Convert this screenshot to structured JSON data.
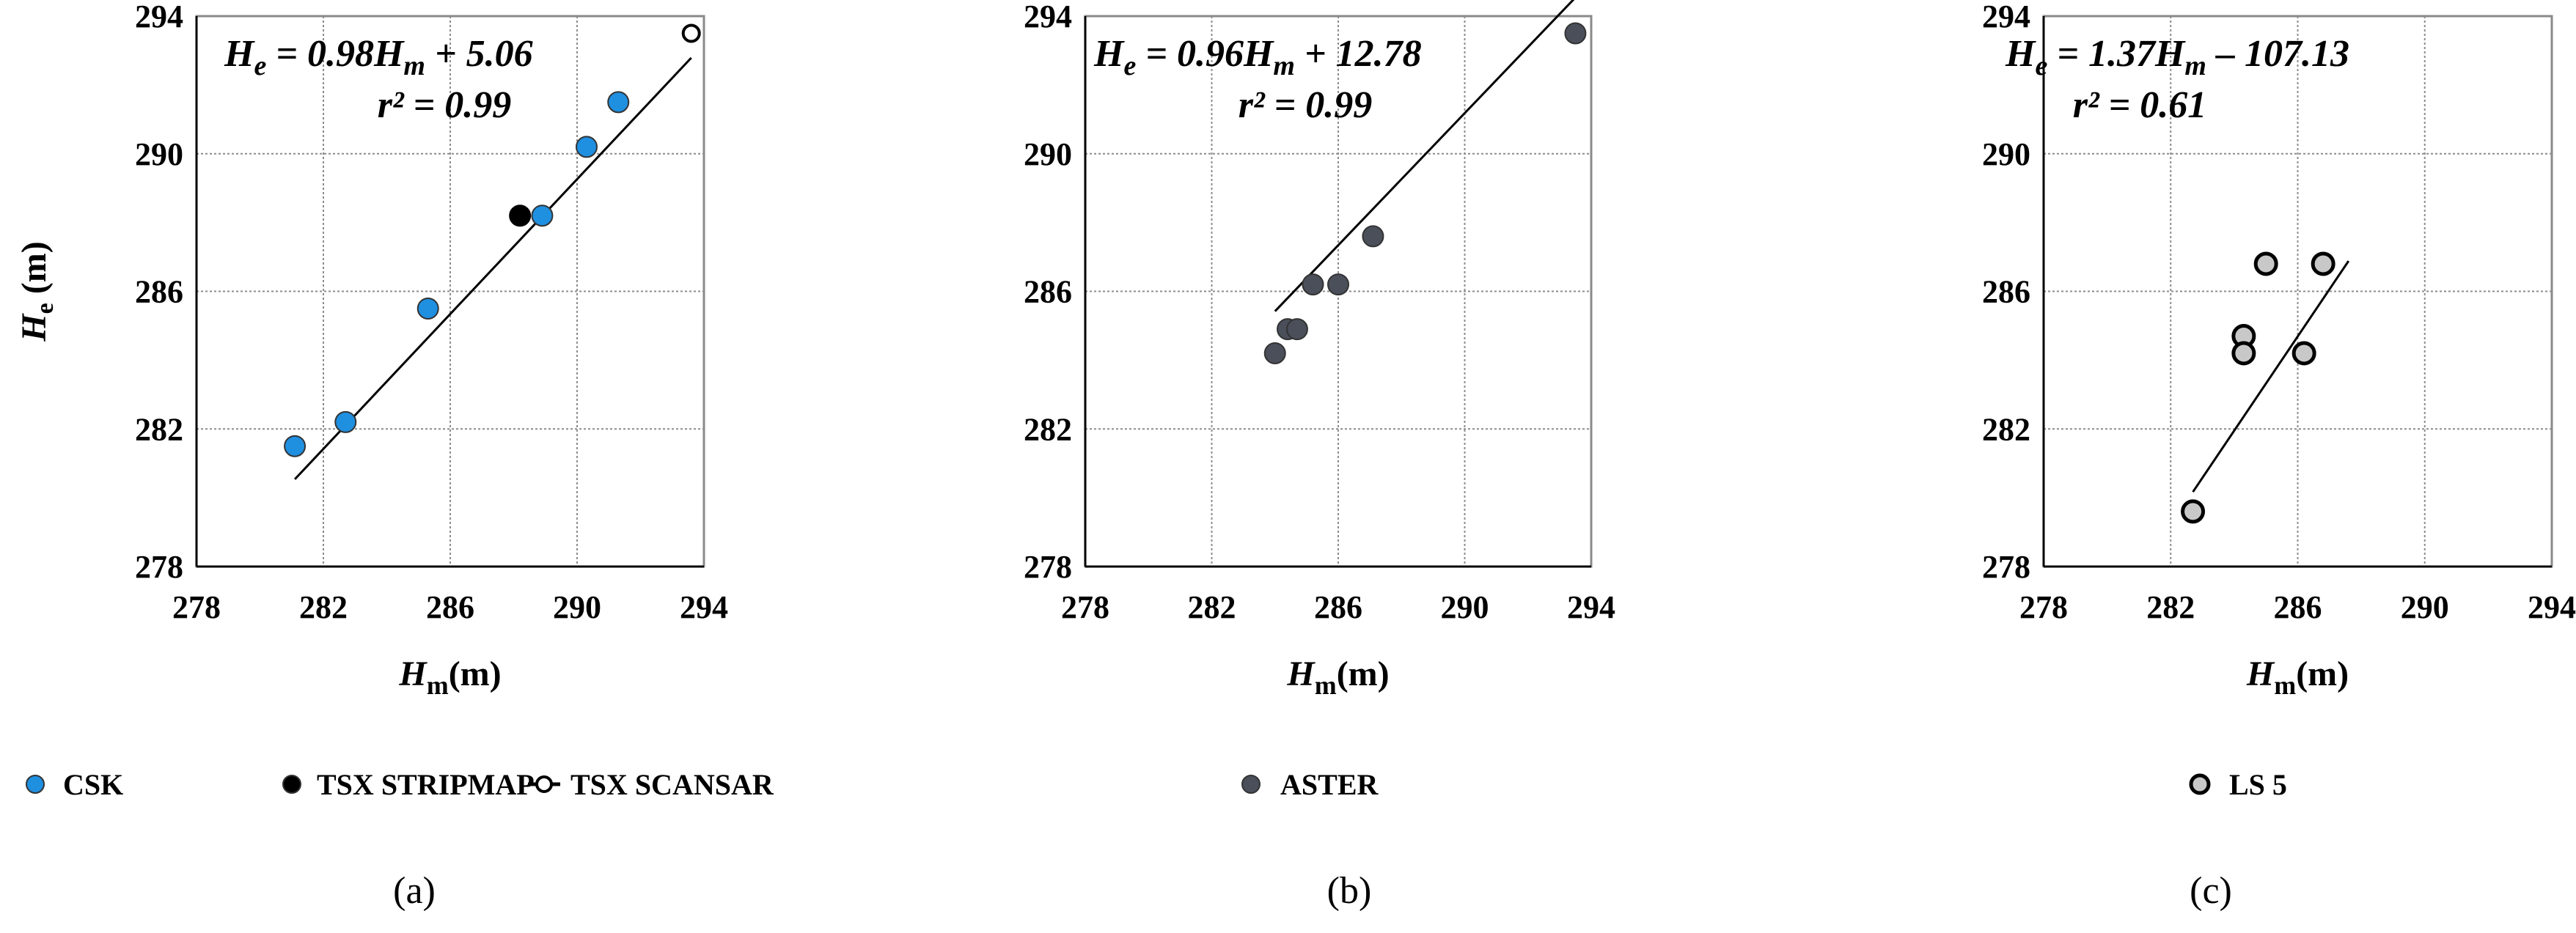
{
  "chart_data": [
    {
      "type": "scatter",
      "panel_label": "(a)",
      "x_range": [
        278,
        294
      ],
      "y_range": [
        278,
        294
      ],
      "x_ticks": [
        "278",
        "282",
        "286",
        "290",
        "294"
      ],
      "y_ticks": [
        "278",
        "282",
        "286",
        "290",
        "294"
      ],
      "grid": true,
      "legend_position": "bottom",
      "equation": {
        "lhs": "H",
        "lhs_sub": "e",
        "mid": " = 0.98",
        "rhs_var": "H",
        "rhs_sub": "m",
        "tail": " + 5.06"
      },
      "r2": "r² = 0.99",
      "fit": {
        "slope": 0.98,
        "intercept": 5.06,
        "x_range": [
          281.1,
          293.6
        ]
      },
      "ylabel": {
        "var": "H",
        "sub": "e",
        "unit": " (m)"
      },
      "xlabel": {
        "var": "H",
        "sub": "m",
        "unit": "(m)"
      },
      "series": [
        {
          "name": "CSK",
          "marker": "blue-dot",
          "color": "#1f8fe0",
          "points": [
            [
              281.1,
              281.5
            ],
            [
              282.7,
              282.2
            ],
            [
              285.3,
              285.5
            ],
            [
              288.9,
              288.2
            ],
            [
              290.3,
              290.2
            ],
            [
              291.3,
              291.5
            ]
          ]
        },
        {
          "name": "TSX STRIPMAP",
          "marker": "black-dot",
          "color": "#000000",
          "points": [
            [
              288.2,
              288.2
            ]
          ]
        },
        {
          "name": "TSX SCANSAR",
          "marker": "hollow-dot-with-line",
          "color": "#000000",
          "points": [
            [
              293.6,
              293.5
            ]
          ]
        }
      ]
    },
    {
      "type": "scatter",
      "panel_label": "(b)",
      "x_range": [
        278,
        294
      ],
      "y_range": [
        278,
        294
      ],
      "x_ticks": [
        "278",
        "282",
        "286",
        "290",
        "294"
      ],
      "y_ticks": [
        "278",
        "282",
        "286",
        "290",
        "294"
      ],
      "grid": true,
      "legend_position": "bottom",
      "equation": {
        "lhs": "H",
        "lhs_sub": "e",
        "mid": " = 0.96",
        "rhs_var": "H",
        "rhs_sub": "m",
        "tail": " + 12.78"
      },
      "r2": "r² = 0.99",
      "fit": {
        "slope": 0.96,
        "intercept": 12.78,
        "x_range": [
          284.0,
          293.5
        ]
      },
      "xlabel": {
        "var": "H",
        "sub": "m",
        "unit": "(m)"
      },
      "series": [
        {
          "name": "ASTER",
          "marker": "gray-dot",
          "color": "#4a4f5a",
          "points": [
            [
              284.0,
              284.2
            ],
            [
              284.4,
              284.9
            ],
            [
              284.7,
              284.9
            ],
            [
              285.2,
              286.2
            ],
            [
              286.0,
              286.2
            ],
            [
              287.1,
              287.6
            ],
            [
              293.5,
              293.5
            ]
          ]
        }
      ]
    },
    {
      "type": "scatter",
      "panel_label": "(c)",
      "x_range": [
        278,
        294
      ],
      "y_range": [
        278,
        294
      ],
      "x_ticks": [
        "278",
        "282",
        "286",
        "290",
        "294"
      ],
      "y_ticks": [
        "278",
        "282",
        "286",
        "290",
        "294"
      ],
      "grid": true,
      "legend_position": "bottom",
      "equation": {
        "lhs": "H",
        "lhs_sub": "e",
        "mid": " = 1.37",
        "rhs_var": "H",
        "rhs_sub": "m",
        "tail": " – 107.13"
      },
      "r2": "r² = 0.61",
      "fit": {
        "slope": 1.37,
        "intercept": -107.13,
        "x_range": [
          282.7,
          287.6
        ]
      },
      "xlabel": {
        "var": "H",
        "sub": "m",
        "unit": "(m)"
      },
      "series": [
        {
          "name": "LS 5",
          "marker": "light-gray-dot-black-edge",
          "color": "#c8c8c8",
          "points": [
            [
              282.7,
              279.6
            ],
            [
              284.3,
              284.7
            ],
            [
              284.3,
              284.2
            ],
            [
              285.0,
              286.8
            ],
            [
              286.2,
              284.2
            ],
            [
              286.8,
              286.8
            ]
          ]
        }
      ]
    }
  ]
}
